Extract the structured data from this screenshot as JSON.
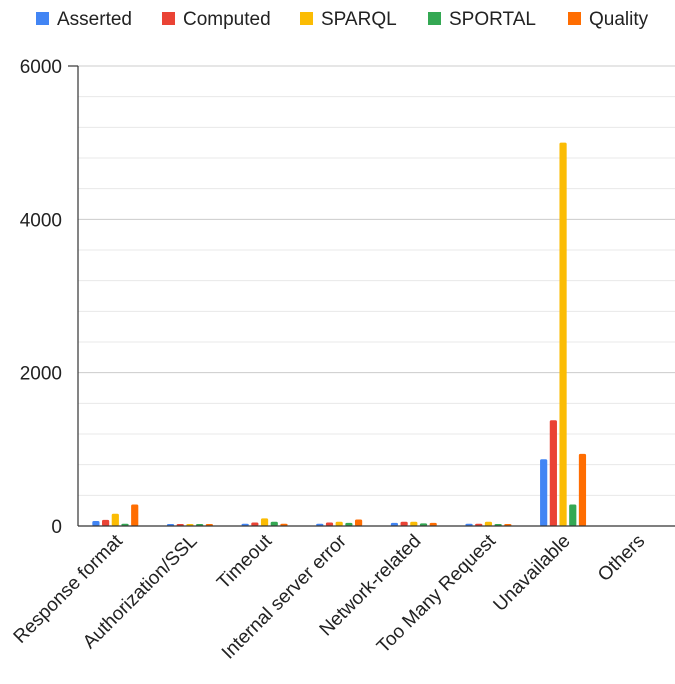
{
  "chart_data": {
    "type": "bar",
    "categories": [
      "Response format",
      "Authorization/SSL",
      "Timeout",
      "Internal server error",
      "Network-related",
      "Too Many Request",
      "Unavailable",
      "Others"
    ],
    "series": [
      {
        "name": "Asserted",
        "color": "#4285f4",
        "values": [
          65,
          10,
          30,
          30,
          40,
          30,
          870,
          0
        ]
      },
      {
        "name": "Computed",
        "color": "#ea4335",
        "values": [
          80,
          15,
          45,
          45,
          55,
          30,
          1380,
          0
        ]
      },
      {
        "name": "SPARQL",
        "color": "#fbbc04",
        "values": [
          160,
          20,
          100,
          55,
          55,
          55,
          5000,
          0
        ]
      },
      {
        "name": "SPORTAL",
        "color": "#34a853",
        "values": [
          30,
          10,
          55,
          40,
          35,
          10,
          280,
          0
        ]
      },
      {
        "name": "Quality",
        "color": "#ff6d01",
        "values": [
          280,
          15,
          30,
          85,
          40,
          15,
          940,
          0
        ]
      }
    ],
    "yticks": [
      "0",
      "2000",
      "4000",
      "6000"
    ],
    "ylim": [
      0,
      6000
    ],
    "grid": true,
    "legend_position": "top"
  }
}
